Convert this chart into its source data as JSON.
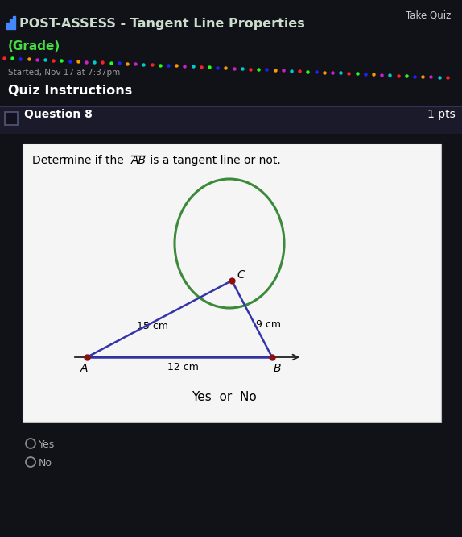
{
  "bg_color": "#111118",
  "take_quiz_text": "Take Quiz",
  "title_text": "POST-ASSESS - Tangent Line Properties",
  "grade_text": "(Grade)",
  "started_text": "Started, Nov 17 at 7:37pm",
  "quiz_instructions_text": "Quiz Instructions",
  "question_text": "Question 8",
  "pts_text": "1 pts",
  "question_bg": "#1e1e2e",
  "white_box_bg": "#f5f5f5",
  "problem_text": "Determine if the ",
  "ab_text": "AB",
  "problem_text2": " is a tangent line or not.",
  "yes_or_no_text": "Yes  or  No",
  "circle_color": "#3a8a3a",
  "line_color": "#3333aa",
  "dot_color": "#8b1010",
  "arrow_color": "#222222",
  "label_A": "A",
  "label_B": "B",
  "label_C": "C",
  "label_15": "15 cm",
  "label_12": "12 cm",
  "label_9": "9 cm",
  "radio_yes": "Yes",
  "radio_no": "No",
  "dot_size": 5,
  "line_width": 1.8,
  "circle_lw": 2.2,
  "dot_colors": [
    "#ff2222",
    "#22ff22",
    "#2222ff",
    "#ff9900",
    "#cc22cc",
    "#00cccc"
  ]
}
